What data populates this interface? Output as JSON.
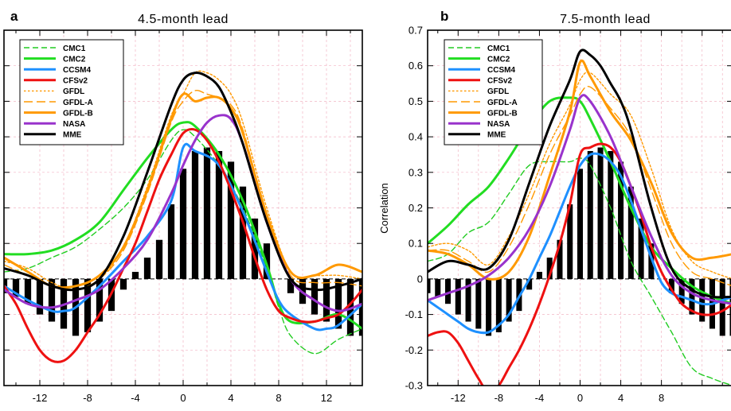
{
  "chart_data": [
    {
      "type": "line",
      "panel_letter": "a",
      "title": "4.5-month lead",
      "xlabel": "",
      "ylabel": "",
      "xlim": [
        -15,
        15
      ],
      "ylim": [
        -0.3,
        0.7
      ],
      "xticks": [
        "-12",
        "-8",
        "-4",
        "0",
        "4",
        "8",
        "12"
      ],
      "yticks": [],
      "grid": true,
      "legend_position": "top-left",
      "bars": {
        "name": "",
        "x": [
          -15,
          -14,
          -13,
          -12,
          -11,
          -10,
          -9,
          -8,
          -7,
          -6,
          -5,
          -4,
          -3,
          -2,
          -1,
          0,
          1,
          2,
          3,
          4,
          5,
          6,
          7,
          8,
          9,
          10,
          11,
          12,
          13,
          14,
          15
        ],
        "values": [
          -0.04,
          -0.05,
          -0.07,
          -0.1,
          -0.12,
          -0.14,
          -0.16,
          -0.15,
          -0.12,
          -0.09,
          -0.03,
          0.02,
          0.06,
          0.11,
          0.21,
          0.31,
          0.36,
          0.37,
          0.36,
          0.33,
          0.26,
          0.17,
          0.1,
          0.0,
          -0.04,
          -0.07,
          -0.1,
          -0.12,
          -0.14,
          -0.16,
          -0.16
        ]
      },
      "series": [
        {
          "name": "CMC1",
          "color": "#22cc22",
          "dash": "dash",
          "width": 1.4,
          "x": [
            -15,
            -13,
            -11,
            -9,
            -7,
            -5,
            -3,
            -1,
            0,
            1,
            3,
            5,
            7,
            8,
            9,
            11,
            13,
            15
          ],
          "y": [
            0.02,
            0.03,
            0.06,
            0.09,
            0.14,
            0.2,
            0.28,
            0.39,
            0.42,
            0.4,
            0.32,
            0.2,
            0.03,
            -0.08,
            -0.16,
            -0.21,
            -0.17,
            -0.14
          ]
        },
        {
          "name": "CMC2",
          "color": "#22dd22",
          "dash": "solid",
          "width": 3.0,
          "x": [
            -15,
            -13,
            -11,
            -9,
            -7,
            -5,
            -3,
            -1,
            0,
            1,
            3,
            5,
            7,
            8,
            9,
            11,
            13,
            15
          ],
          "y": [
            0.07,
            0.07,
            0.08,
            0.11,
            0.16,
            0.25,
            0.34,
            0.42,
            0.44,
            0.43,
            0.35,
            0.22,
            0.04,
            -0.07,
            -0.12,
            -0.12,
            -0.1,
            -0.14
          ]
        },
        {
          "name": "CCSM4",
          "color": "#1e90ff",
          "dash": "solid",
          "width": 3.0,
          "x": [
            -15,
            -13,
            -11,
            -10,
            -9,
            -7,
            -5,
            -3,
            -1,
            0,
            1,
            3,
            5,
            7,
            8,
            9,
            11,
            12,
            13,
            15
          ],
          "y": [
            -0.02,
            -0.06,
            -0.09,
            -0.09,
            -0.08,
            -0.02,
            0.05,
            0.12,
            0.22,
            0.37,
            0.36,
            0.32,
            0.19,
            0.02,
            -0.06,
            -0.1,
            -0.14,
            -0.14,
            -0.13,
            -0.07
          ]
        },
        {
          "name": "CFSv2",
          "color": "#ee1111",
          "dash": "solid",
          "width": 3.0,
          "x": [
            -15,
            -14,
            -13,
            -12,
            -11,
            -10,
            -9,
            -8,
            -7,
            -6,
            -5,
            -4,
            -3,
            -2,
            -1,
            0,
            1,
            2,
            3,
            4,
            5,
            6,
            7,
            8,
            9,
            10,
            11,
            12,
            13,
            14,
            15
          ],
          "y": [
            -0.02,
            -0.07,
            -0.14,
            -0.2,
            -0.23,
            -0.23,
            -0.2,
            -0.15,
            -0.1,
            -0.04,
            0.03,
            0.1,
            0.19,
            0.28,
            0.35,
            0.41,
            0.42,
            0.39,
            0.33,
            0.25,
            0.16,
            0.06,
            -0.03,
            -0.09,
            -0.11,
            -0.12,
            -0.12,
            -0.11,
            -0.1,
            -0.07,
            -0.03
          ]
        },
        {
          "name": "GFDL",
          "color": "#ff9900",
          "dash": "dot",
          "width": 1.4,
          "x": [
            -15,
            -13,
            -11,
            -9,
            -7,
            -5,
            -3,
            -1,
            0,
            1,
            2,
            3,
            4,
            5,
            7,
            9,
            11,
            13,
            15
          ],
          "y": [
            0.05,
            0.03,
            -0.01,
            -0.03,
            0.0,
            0.09,
            0.26,
            0.46,
            0.52,
            0.58,
            0.58,
            0.56,
            0.52,
            0.44,
            0.2,
            0.02,
            0.01,
            0.01,
            0.0
          ]
        },
        {
          "name": "GFDL-A",
          "color": "#ff9900",
          "dash": "longdash",
          "width": 1.4,
          "x": [
            -15,
            -13,
            -11,
            -9,
            -7,
            -5,
            -3,
            -1,
            0,
            1,
            2,
            3,
            4,
            5,
            7,
            9,
            11,
            13,
            15
          ],
          "y": [
            0.04,
            0.01,
            -0.02,
            -0.03,
            0.0,
            0.08,
            0.24,
            0.44,
            0.5,
            0.53,
            0.52,
            0.51,
            0.49,
            0.42,
            0.18,
            0.01,
            -0.01,
            -0.01,
            -0.02
          ]
        },
        {
          "name": "GFDL-B",
          "color": "#ff9900",
          "dash": "solid",
          "width": 3.0,
          "x": [
            -15,
            -13,
            -11,
            -9,
            -7,
            -5,
            -3,
            -1,
            0,
            1,
            2,
            3,
            4,
            5,
            7,
            9,
            11,
            13,
            15
          ],
          "y": [
            0.06,
            0.02,
            -0.02,
            -0.02,
            0.01,
            0.09,
            0.25,
            0.45,
            0.52,
            0.5,
            0.51,
            0.51,
            0.48,
            0.41,
            0.18,
            0.02,
            0.01,
            0.04,
            0.02
          ]
        },
        {
          "name": "NASA",
          "color": "#9933cc",
          "dash": "solid",
          "width": 3.0,
          "x": [
            -15,
            -13,
            -11,
            -9,
            -7,
            -5,
            -3,
            -1,
            0,
            1,
            2,
            3,
            4,
            5,
            7,
            9,
            11,
            13,
            15
          ],
          "y": [
            -0.03,
            -0.07,
            -0.08,
            -0.06,
            -0.03,
            0.03,
            0.11,
            0.24,
            0.32,
            0.39,
            0.44,
            0.46,
            0.45,
            0.38,
            0.16,
            0.0,
            -0.06,
            -0.09,
            -0.07
          ]
        },
        {
          "name": "MME",
          "color": "#000000",
          "dash": "solid",
          "width": 3.0,
          "x": [
            -15,
            -13,
            -11,
            -9,
            -7,
            -5,
            -3,
            -1,
            0,
            1,
            2,
            3,
            4,
            5,
            7,
            9,
            11,
            13,
            15
          ],
          "y": [
            0.03,
            0.01,
            -0.02,
            -0.03,
            0.0,
            0.12,
            0.3,
            0.49,
            0.56,
            0.58,
            0.57,
            0.54,
            0.47,
            0.38,
            0.16,
            0.0,
            -0.03,
            -0.02,
            0.0
          ]
        }
      ]
    },
    {
      "type": "line",
      "panel_letter": "b",
      "title": "7.5-month lead",
      "xlabel": "",
      "ylabel": "Correlation",
      "xlim": [
        -15,
        15
      ],
      "ylim": [
        -0.3,
        0.7
      ],
      "xticks": [
        "-12",
        "-8",
        "-4",
        "0",
        "4",
        "8"
      ],
      "yticks": [
        "-0.3",
        "-0.2",
        "-0.1",
        "0",
        "0.1",
        "0.2",
        "0.3",
        "0.4",
        "0.5",
        "0.6",
        "0.7"
      ],
      "grid": true,
      "legend_position": "top-left",
      "bars": {
        "name": "",
        "x": [
          -15,
          -14,
          -13,
          -12,
          -11,
          -10,
          -9,
          -8,
          -7,
          -6,
          -5,
          -4,
          -3,
          -2,
          -1,
          0,
          1,
          2,
          3,
          4,
          5,
          6,
          7,
          8,
          9,
          10,
          11,
          12,
          13,
          14,
          15
        ],
        "values": [
          -0.04,
          -0.05,
          -0.07,
          -0.1,
          -0.12,
          -0.14,
          -0.16,
          -0.15,
          -0.12,
          -0.09,
          -0.03,
          0.02,
          0.06,
          0.11,
          0.21,
          0.31,
          0.36,
          0.37,
          0.36,
          0.33,
          0.26,
          0.17,
          0.1,
          0.0,
          -0.04,
          -0.07,
          -0.1,
          -0.12,
          -0.14,
          -0.16,
          -0.16
        ]
      },
      "series": [
        {
          "name": "CMC1",
          "color": "#22cc22",
          "dash": "dash",
          "width": 1.4,
          "x": [
            -15,
            -13,
            -11,
            -9,
            -7,
            -5,
            -3,
            -1,
            0,
            1,
            3,
            5,
            7,
            9,
            11,
            13,
            15
          ],
          "y": [
            0.05,
            0.07,
            0.13,
            0.16,
            0.24,
            0.32,
            0.33,
            0.33,
            0.34,
            0.32,
            0.2,
            0.05,
            -0.05,
            -0.15,
            -0.25,
            -0.28,
            -0.3
          ]
        },
        {
          "name": "CMC2",
          "color": "#22dd22",
          "dash": "solid",
          "width": 3.0,
          "x": [
            -15,
            -13,
            -11,
            -9,
            -7,
            -5,
            -3,
            -1,
            0,
            1,
            3,
            5,
            7,
            9,
            11,
            13,
            15
          ],
          "y": [
            0.1,
            0.15,
            0.21,
            0.26,
            0.34,
            0.43,
            0.5,
            0.51,
            0.5,
            0.45,
            0.33,
            0.2,
            0.09,
            0.03,
            -0.02,
            -0.05,
            -0.07
          ]
        },
        {
          "name": "CCSM4",
          "color": "#1e90ff",
          "dash": "solid",
          "width": 3.0,
          "x": [
            -15,
            -14,
            -13,
            -12,
            -11,
            -10,
            -9,
            -8,
            -7,
            -6,
            -5,
            -4,
            -3,
            -2,
            -1,
            0,
            1,
            2,
            3,
            4,
            5,
            6,
            7,
            8,
            9,
            10,
            11,
            12,
            13,
            14,
            15
          ],
          "y": [
            -0.06,
            -0.08,
            -0.1,
            -0.12,
            -0.14,
            -0.15,
            -0.15,
            -0.13,
            -0.1,
            -0.05,
            0.0,
            0.06,
            0.12,
            0.19,
            0.26,
            0.32,
            0.35,
            0.35,
            0.33,
            0.29,
            0.22,
            0.14,
            0.06,
            -0.01,
            -0.04,
            -0.05,
            -0.06,
            -0.07,
            -0.07,
            -0.06,
            -0.05
          ]
        },
        {
          "name": "CFSv2",
          "color": "#ee1111",
          "dash": "solid",
          "width": 3.0,
          "x": [
            -15,
            -14,
            -13,
            -12,
            -11,
            -10,
            -9,
            -8,
            -7,
            -6,
            -5,
            -4,
            -3,
            -2,
            -1,
            0,
            1,
            2,
            3,
            4,
            5,
            6,
            7,
            8,
            9,
            10,
            11,
            12,
            13,
            14,
            15
          ],
          "y": [
            -0.16,
            -0.15,
            -0.15,
            -0.18,
            -0.23,
            -0.28,
            -0.32,
            -0.3,
            -0.25,
            -0.2,
            -0.14,
            -0.07,
            0.01,
            0.1,
            0.21,
            0.35,
            0.37,
            0.38,
            0.37,
            0.33,
            0.26,
            0.18,
            0.09,
            0.02,
            -0.03,
            -0.07,
            -0.09,
            -0.1,
            -0.1,
            -0.09,
            -0.07
          ]
        },
        {
          "name": "GFDL",
          "color": "#ff9900",
          "dash": "dot",
          "width": 1.4,
          "x": [
            -15,
            -13,
            -11,
            -9,
            -7,
            -5,
            -3,
            -1,
            0,
            1,
            3,
            5,
            7,
            9,
            11,
            13,
            15
          ],
          "y": [
            0.09,
            0.1,
            0.08,
            0.04,
            0.12,
            0.24,
            0.38,
            0.49,
            0.56,
            0.58,
            0.52,
            0.46,
            0.31,
            0.14,
            0.05,
            0.02,
            0.0
          ]
        },
        {
          "name": "GFDL-A",
          "color": "#ff9900",
          "dash": "longdash",
          "width": 1.4,
          "x": [
            -15,
            -13,
            -11,
            -9,
            -7,
            -5,
            -3,
            -1,
            0,
            1,
            3,
            5,
            7,
            9,
            11,
            13,
            15
          ],
          "y": [
            0.08,
            0.08,
            0.05,
            0.02,
            0.09,
            0.21,
            0.35,
            0.46,
            0.52,
            0.54,
            0.48,
            0.4,
            0.25,
            0.1,
            0.02,
            0.0,
            -0.02
          ]
        },
        {
          "name": "GFDL-B",
          "color": "#ff9900",
          "dash": "solid",
          "width": 3.0,
          "x": [
            -15,
            -13,
            -11,
            -9,
            -7,
            -5,
            -3,
            -1,
            0,
            1,
            3,
            5,
            7,
            9,
            11,
            13,
            15
          ],
          "y": [
            0.08,
            0.07,
            0.04,
            0.0,
            0.02,
            0.12,
            0.29,
            0.47,
            0.61,
            0.57,
            0.47,
            0.39,
            0.27,
            0.13,
            0.06,
            0.06,
            0.07
          ]
        },
        {
          "name": "NASA",
          "color": "#9933cc",
          "dash": "solid",
          "width": 3.0,
          "x": [
            -15,
            -13,
            -11,
            -9,
            -7,
            -5,
            -3,
            -1,
            0,
            1,
            3,
            5,
            7,
            9,
            11,
            13,
            15
          ],
          "y": [
            -0.06,
            -0.04,
            -0.02,
            0.01,
            0.06,
            0.14,
            0.26,
            0.42,
            0.51,
            0.5,
            0.4,
            0.26,
            0.12,
            0.01,
            -0.04,
            -0.06,
            -0.07
          ]
        },
        {
          "name": "MME",
          "color": "#000000",
          "dash": "solid",
          "width": 3.0,
          "x": [
            -15,
            -13,
            -11,
            -9,
            -7,
            -5,
            -3,
            -1,
            0,
            1,
            2,
            3,
            4,
            5,
            7,
            9,
            11,
            13,
            15
          ],
          "y": [
            0.02,
            0.05,
            0.04,
            0.03,
            0.11,
            0.27,
            0.43,
            0.56,
            0.64,
            0.63,
            0.6,
            0.55,
            0.5,
            0.42,
            0.2,
            0.03,
            -0.03,
            -0.05,
            -0.05
          ]
        }
      ]
    }
  ]
}
